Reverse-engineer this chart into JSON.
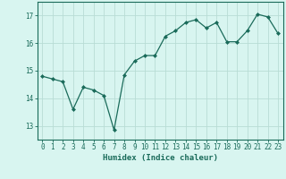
{
  "x": [
    0,
    1,
    2,
    3,
    4,
    5,
    6,
    7,
    8,
    9,
    10,
    11,
    12,
    13,
    14,
    15,
    16,
    17,
    18,
    19,
    20,
    21,
    22,
    23
  ],
  "y": [
    14.8,
    14.7,
    14.6,
    13.6,
    14.4,
    14.3,
    14.1,
    12.85,
    14.85,
    15.35,
    15.55,
    15.55,
    16.25,
    16.45,
    16.75,
    16.85,
    16.55,
    16.75,
    16.05,
    16.05,
    16.45,
    17.05,
    16.95,
    16.35
  ],
  "line_color": "#1a6b5a",
  "marker": "D",
  "marker_size": 2.0,
  "bg_color": "#d8f5f0",
  "grid_color": "#b8dcd5",
  "xlabel": "Humidex (Indice chaleur)",
  "xlim": [
    -0.5,
    23.5
  ],
  "ylim": [
    12.5,
    17.5
  ],
  "yticks": [
    13,
    14,
    15,
    16,
    17
  ],
  "xticks": [
    0,
    1,
    2,
    3,
    4,
    5,
    6,
    7,
    8,
    9,
    10,
    11,
    12,
    13,
    14,
    15,
    16,
    17,
    18,
    19,
    20,
    21,
    22,
    23
  ],
  "axis_color": "#1a6b5a",
  "tick_color": "#1a6b5a",
  "label_color": "#1a6b5a",
  "tick_fontsize": 5.5,
  "xlabel_fontsize": 6.5
}
